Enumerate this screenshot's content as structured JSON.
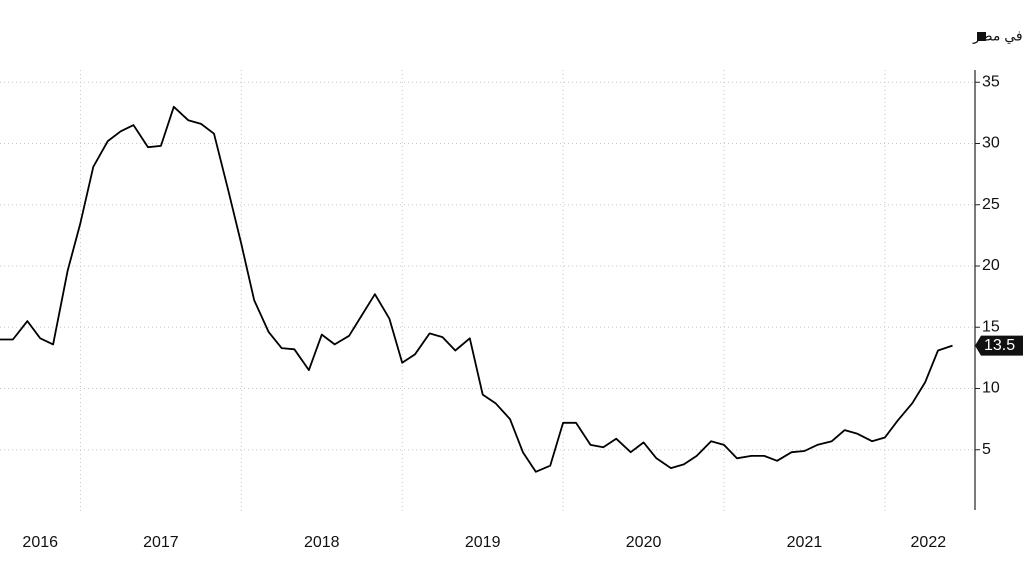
{
  "chart_data": {
    "type": "line",
    "title": "المعدل الشهري لأسعار المستهلك على أساس سنوي في مصر",
    "x": [
      2016.5,
      2016.58,
      2016.67,
      2016.75,
      2016.83,
      2016.92,
      2017.0,
      2017.08,
      2017.17,
      2017.25,
      2017.33,
      2017.42,
      2017.5,
      2017.58,
      2017.67,
      2017.75,
      2017.83,
      2017.92,
      2018.0,
      2018.08,
      2018.17,
      2018.25,
      2018.33,
      2018.42,
      2018.5,
      2018.58,
      2018.67,
      2018.75,
      2018.83,
      2018.92,
      2019.0,
      2019.08,
      2019.17,
      2019.25,
      2019.33,
      2019.42,
      2019.5,
      2019.58,
      2019.67,
      2019.75,
      2019.83,
      2019.92,
      2020.0,
      2020.08,
      2020.17,
      2020.25,
      2020.33,
      2020.42,
      2020.5,
      2020.58,
      2020.67,
      2020.75,
      2020.83,
      2020.92,
      2021.0,
      2021.08,
      2021.17,
      2021.25,
      2021.33,
      2021.42,
      2021.5,
      2021.58,
      2021.67,
      2021.75,
      2021.83,
      2021.92,
      2022.0,
      2022.08,
      2022.17,
      2022.25,
      2022.33,
      2022.42
    ],
    "series": [
      {
        "name": "المعدل الشهري لأسعار المستهلك على أساس سنوي في مصر",
        "color": "#000000",
        "values": [
          14.0,
          14.0,
          15.5,
          14.1,
          13.6,
          19.6,
          23.5,
          28.1,
          30.2,
          31.0,
          31.5,
          29.7,
          29.8,
          33.0,
          31.9,
          31.6,
          30.8,
          26.1,
          21.8,
          17.2,
          14.6,
          13.3,
          13.2,
          11.5,
          14.4,
          13.6,
          14.3,
          16.0,
          17.7,
          15.7,
          12.1,
          12.8,
          14.5,
          14.2,
          13.1,
          14.1,
          9.5,
          8.8,
          7.5,
          4.8,
          3.2,
          3.7,
          7.2,
          7.2,
          5.4,
          5.2,
          5.9,
          4.8,
          5.6,
          4.3,
          3.5,
          3.8,
          4.5,
          5.7,
          5.4,
          4.3,
          4.5,
          4.5,
          4.1,
          4.8,
          4.9,
          5.4,
          5.7,
          6.6,
          6.3,
          5.7,
          6.0,
          7.4,
          8.8,
          10.5,
          13.1,
          13.5
        ]
      }
    ],
    "xlim": [
      2016.5,
      2022.56
    ],
    "xticks": [
      {
        "value": 2016.75,
        "label": "2016"
      },
      {
        "value": 2017.5,
        "label": "2017"
      },
      {
        "value": 2018.5,
        "label": "2018"
      },
      {
        "value": 2019.5,
        "label": "2019"
      },
      {
        "value": 2020.5,
        "label": "2020"
      },
      {
        "value": 2021.5,
        "label": "2021"
      },
      {
        "value": 2022.27,
        "label": "2022"
      }
    ],
    "xgrid": [
      2017,
      2018,
      2019,
      2020,
      2021,
      2022
    ],
    "ylim": [
      0,
      36
    ],
    "yticks": [
      5,
      10,
      15,
      20,
      25,
      30,
      35
    ],
    "grid": true
  }
}
